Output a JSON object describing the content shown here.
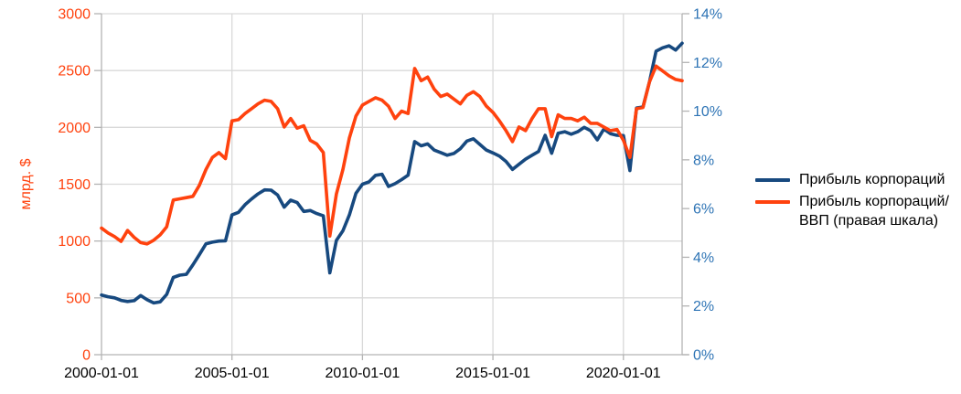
{
  "chart_data": {
    "type": "line",
    "x": [
      "2000-01-01",
      "2000-04-01",
      "2000-07-01",
      "2000-10-01",
      "2001-01-01",
      "2001-04-01",
      "2001-07-01",
      "2001-10-01",
      "2002-01-01",
      "2002-04-01",
      "2002-07-01",
      "2002-10-01",
      "2003-01-01",
      "2003-04-01",
      "2003-07-01",
      "2003-10-01",
      "2004-01-01",
      "2004-04-01",
      "2004-07-01",
      "2004-10-01",
      "2005-01-01",
      "2005-04-01",
      "2005-07-01",
      "2005-10-01",
      "2006-01-01",
      "2006-04-01",
      "2006-07-01",
      "2006-10-01",
      "2007-01-01",
      "2007-04-01",
      "2007-07-01",
      "2007-10-01",
      "2008-01-01",
      "2008-04-01",
      "2008-07-01",
      "2008-10-01",
      "2009-01-01",
      "2009-04-01",
      "2009-07-01",
      "2009-10-01",
      "2010-01-01",
      "2010-04-01",
      "2010-07-01",
      "2010-10-01",
      "2011-01-01",
      "2011-04-01",
      "2011-07-01",
      "2011-10-01",
      "2012-01-01",
      "2012-04-01",
      "2012-07-01",
      "2012-10-01",
      "2013-01-01",
      "2013-04-01",
      "2013-07-01",
      "2013-10-01",
      "2014-01-01",
      "2014-04-01",
      "2014-07-01",
      "2014-10-01",
      "2015-01-01",
      "2015-04-01",
      "2015-07-01",
      "2015-10-01",
      "2016-01-01",
      "2016-04-01",
      "2016-07-01",
      "2016-10-01",
      "2017-01-01",
      "2017-04-01",
      "2017-07-01",
      "2017-10-01",
      "2018-01-01",
      "2018-04-01",
      "2018-07-01",
      "2018-10-01",
      "2019-01-01",
      "2019-04-01",
      "2019-07-01",
      "2019-10-01",
      "2020-01-01",
      "2020-04-01",
      "2020-07-01",
      "2020-10-01",
      "2021-01-01",
      "2021-04-01",
      "2021-07-01",
      "2021-10-01",
      "2022-01-01",
      "2022-04-01"
    ],
    "series": [
      {
        "name": "Прибыль корпораций",
        "axis": "left",
        "units": "млрд. $",
        "color": "#17497F",
        "values": [
          525,
          510,
          500,
          478,
          468,
          475,
          520,
          483,
          455,
          465,
          530,
          680,
          700,
          707,
          790,
          880,
          975,
          990,
          1000,
          1002,
          1230,
          1252,
          1320,
          1370,
          1415,
          1450,
          1448,
          1405,
          1298,
          1360,
          1338,
          1260,
          1268,
          1242,
          1222,
          720,
          1005,
          1090,
          1230,
          1420,
          1500,
          1520,
          1578,
          1588,
          1480,
          1505,
          1540,
          1580,
          1875,
          1838,
          1855,
          1800,
          1778,
          1755,
          1770,
          1812,
          1880,
          1900,
          1850,
          1800,
          1775,
          1748,
          1700,
          1630,
          1675,
          1720,
          1755,
          1788,
          1930,
          1772,
          1948,
          1962,
          1940,
          1962,
          2000,
          1970,
          1890,
          1985,
          1945,
          1930,
          1928,
          1620,
          2170,
          2180,
          2400,
          2670,
          2700,
          2718,
          2680,
          2740
        ]
      },
      {
        "name": "Прибыль корпораций/ВВП (правая шкала)",
        "axis": "right",
        "units": "%",
        "color": "#FF420E",
        "values": [
          5.2,
          5.0,
          4.85,
          4.65,
          5.1,
          4.82,
          4.6,
          4.55,
          4.7,
          4.92,
          5.25,
          6.35,
          6.4,
          6.45,
          6.5,
          6.95,
          7.6,
          8.1,
          8.3,
          8.05,
          9.6,
          9.65,
          9.9,
          10.1,
          10.3,
          10.45,
          10.4,
          10.1,
          9.35,
          9.7,
          9.3,
          9.4,
          8.8,
          8.65,
          8.3,
          4.87,
          6.6,
          7.6,
          8.9,
          9.8,
          10.25,
          10.4,
          10.55,
          10.45,
          10.2,
          9.7,
          10.0,
          9.9,
          11.75,
          11.25,
          11.4,
          10.9,
          10.6,
          10.7,
          10.5,
          10.3,
          10.65,
          10.8,
          10.6,
          10.2,
          9.95,
          9.6,
          9.2,
          8.75,
          9.35,
          9.2,
          9.7,
          10.1,
          10.1,
          8.95,
          9.85,
          9.7,
          9.7,
          9.6,
          9.75,
          9.5,
          9.5,
          9.35,
          9.2,
          9.25,
          8.8,
          8.1,
          10.1,
          10.15,
          11.2,
          11.85,
          11.65,
          11.45,
          11.3,
          11.25
        ]
      }
    ],
    "left_axis": {
      "label": "млрд. $",
      "min": 0,
      "max": 3000,
      "step": 500,
      "color": "#FF420E",
      "tick_labels": [
        "0",
        "500",
        "1000",
        "1500",
        "2000",
        "2500",
        "3000"
      ]
    },
    "right_axis": {
      "min": 0,
      "max": 14,
      "step": 2,
      "color": "#2E74B5",
      "tick_labels": [
        "0%",
        "2%",
        "4%",
        "6%",
        "8%",
        "10%",
        "12%",
        "14%"
      ]
    },
    "x_axis": {
      "min_year": 2000,
      "max_year": 2022.25,
      "color": "#000000",
      "tick_labels": [
        "2000-01-01",
        "2005-01-01",
        "2010-01-01",
        "2015-01-01",
        "2020-01-01"
      ]
    },
    "grid_color": "#d9d9d9",
    "axis_line_color": "#b3b3b3",
    "background": "#ffffff",
    "legend_position": "right",
    "grid": "both"
  },
  "legend": {
    "items": [
      {
        "label": "Прибыль корпораций",
        "color": "#17497F"
      },
      {
        "label": "Прибыль корпораций/ВВП (правая шкала)",
        "color": "#FF420E"
      }
    ]
  }
}
